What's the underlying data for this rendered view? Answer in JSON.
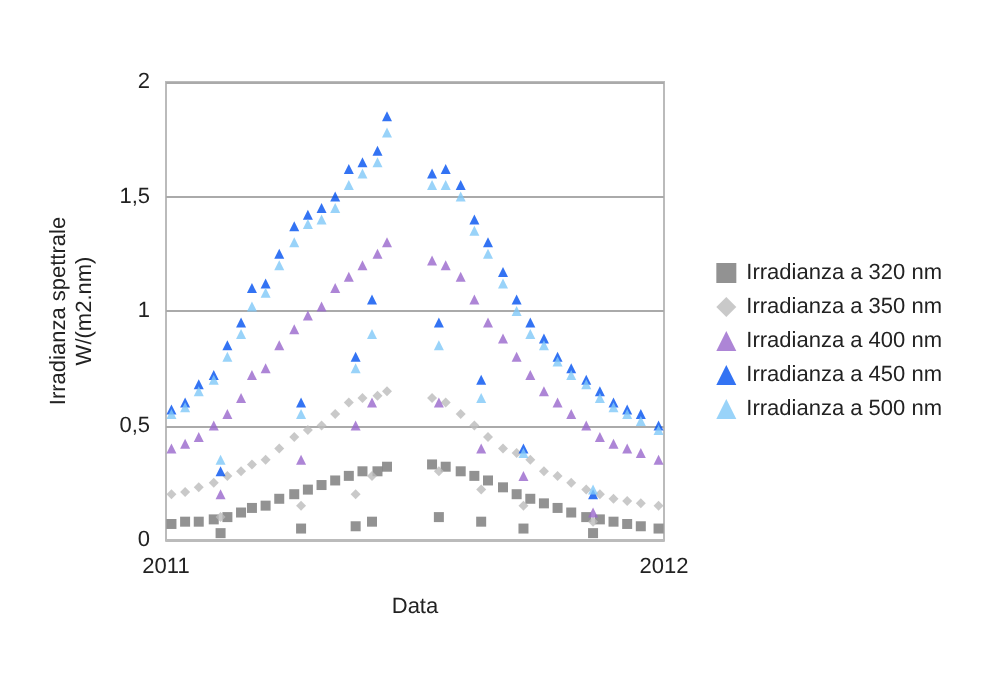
{
  "chart_data": {
    "type": "scatter",
    "xlabel": "Data",
    "ylabel": "Irradianza spettrale\nW/(m2.nm)",
    "x": [
      "2011-01-05",
      "2011-01-15",
      "2011-01-25",
      "2011-02-05",
      "2011-02-10",
      "2011-02-15",
      "2011-02-25",
      "2011-03-05",
      "2011-03-15",
      "2011-03-25",
      "2011-04-05",
      "2011-04-10",
      "2011-04-15",
      "2011-04-25",
      "2011-05-05",
      "2011-05-15",
      "2011-05-20",
      "2011-05-25",
      "2011-06-01",
      "2011-06-05",
      "2011-06-12",
      "2011-07-15",
      "2011-07-20",
      "2011-07-25",
      "2011-08-05",
      "2011-08-15",
      "2011-08-20",
      "2011-08-25",
      "2011-09-05",
      "2011-09-15",
      "2011-09-20",
      "2011-09-25",
      "2011-10-05",
      "2011-10-15",
      "2011-10-25",
      "2011-11-05",
      "2011-11-10",
      "2011-11-15",
      "2011-11-25",
      "2011-12-05",
      "2011-12-15",
      "2011-12-28"
    ],
    "series": [
      {
        "name": "Irradianza a 320 nm",
        "color": "#777777",
        "marker": "square",
        "values": [
          0.07,
          0.08,
          0.08,
          0.09,
          0.03,
          0.1,
          0.12,
          0.14,
          0.15,
          0.18,
          0.2,
          0.05,
          0.22,
          0.24,
          0.26,
          0.28,
          0.06,
          0.3,
          0.08,
          0.3,
          0.32,
          0.33,
          0.1,
          0.32,
          0.3,
          0.28,
          0.08,
          0.26,
          0.23,
          0.2,
          0.05,
          0.18,
          0.16,
          0.14,
          0.12,
          0.1,
          0.03,
          0.09,
          0.08,
          0.07,
          0.06,
          0.05
        ]
      },
      {
        "name": "Irradianza a 350 nm",
        "color": "#bbbbbb",
        "marker": "diamond",
        "values": [
          0.2,
          0.21,
          0.23,
          0.25,
          0.1,
          0.28,
          0.3,
          0.33,
          0.35,
          0.4,
          0.45,
          0.15,
          0.48,
          0.5,
          0.55,
          0.6,
          0.2,
          0.62,
          0.28,
          0.63,
          0.65,
          0.62,
          0.3,
          0.6,
          0.55,
          0.5,
          0.22,
          0.45,
          0.4,
          0.38,
          0.15,
          0.35,
          0.3,
          0.28,
          0.25,
          0.22,
          0.08,
          0.2,
          0.18,
          0.17,
          0.16,
          0.15
        ]
      },
      {
        "name": "Irradianza a 400 nm",
        "color": "#9966cc",
        "marker": "triangle",
        "values": [
          0.4,
          0.42,
          0.45,
          0.5,
          0.2,
          0.55,
          0.62,
          0.72,
          0.75,
          0.85,
          0.92,
          0.35,
          0.98,
          1.02,
          1.1,
          1.15,
          0.5,
          1.2,
          0.6,
          1.25,
          1.3,
          1.22,
          0.6,
          1.2,
          1.15,
          1.05,
          0.4,
          0.95,
          0.88,
          0.8,
          0.28,
          0.72,
          0.65,
          0.6,
          0.55,
          0.5,
          0.12,
          0.45,
          0.42,
          0.4,
          0.38,
          0.35
        ]
      },
      {
        "name": "Irradianza a 450 nm",
        "color": "#0050f0",
        "marker": "triangle",
        "values": [
          0.57,
          0.6,
          0.68,
          0.72,
          0.3,
          0.85,
          0.95,
          1.1,
          1.12,
          1.25,
          1.37,
          0.6,
          1.42,
          1.45,
          1.5,
          1.62,
          0.8,
          1.65,
          1.05,
          1.7,
          1.85,
          1.6,
          0.95,
          1.62,
          1.55,
          1.4,
          0.7,
          1.3,
          1.17,
          1.05,
          0.4,
          0.95,
          0.88,
          0.8,
          0.75,
          0.7,
          0.2,
          0.65,
          0.6,
          0.57,
          0.55,
          0.5
        ]
      },
      {
        "name": "Irradianza a 500 nm",
        "color": "#80c8f8",
        "marker": "triangle",
        "values": [
          0.55,
          0.58,
          0.65,
          0.7,
          0.35,
          0.8,
          0.9,
          1.02,
          1.08,
          1.2,
          1.3,
          0.55,
          1.38,
          1.4,
          1.45,
          1.55,
          0.75,
          1.6,
          0.9,
          1.65,
          1.78,
          1.55,
          0.85,
          1.55,
          1.5,
          1.35,
          0.62,
          1.25,
          1.12,
          1.0,
          0.38,
          0.9,
          0.85,
          0.78,
          0.72,
          0.68,
          0.22,
          0.62,
          0.58,
          0.55,
          0.52,
          0.48
        ]
      }
    ],
    "xlim": [
      "2011",
      "2012"
    ],
    "xticks": [
      "2011",
      "2012"
    ],
    "ylim": [
      0,
      2
    ],
    "yticks": [
      0,
      {
        "value": 0.5,
        "label": "0,5"
      },
      1,
      {
        "value": 1.5,
        "label": "1,5"
      },
      2
    ],
    "grid": "y",
    "legend": "right"
  }
}
